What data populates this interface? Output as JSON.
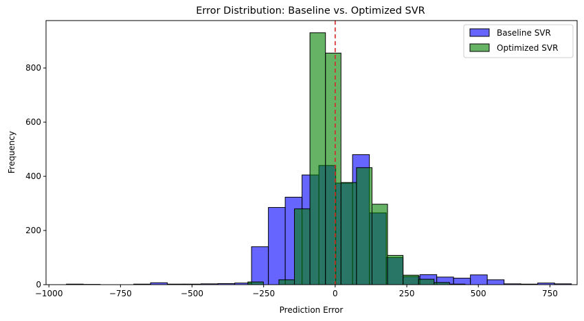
{
  "chart_data": {
    "type": "bar",
    "title": "Error Distribution: Baseline vs. Optimized SVR",
    "xlabel": "Prediction Error",
    "ylabel": "Frequency",
    "xlim": [
      -1010,
      845
    ],
    "ylim": [
      0,
      975
    ],
    "xticks": [
      -1000,
      -750,
      -500,
      -250,
      0,
      250,
      500,
      750
    ],
    "xtick_labels": [
      "−1000",
      "−750",
      "−500",
      "−250",
      "0",
      "250",
      "500",
      "750"
    ],
    "yticks": [
      0,
      200,
      400,
      600,
      800
    ],
    "ytick_labels": [
      "0",
      "200",
      "400",
      "600",
      "800"
    ],
    "grid": false,
    "legend_position": "top-right",
    "reference_line": {
      "x": 0,
      "color": "#d62728",
      "style": "dashed"
    },
    "series": [
      {
        "name": "Baseline SVR",
        "color": "#0000ff",
        "alpha": 0.6,
        "bins": [
          {
            "x0": -938.9,
            "x1": -880.1,
            "count": 2
          },
          {
            "x0": -880.1,
            "x1": -821.3,
            "count": 1
          },
          {
            "x0": -821.3,
            "x1": -762.5,
            "count": 0
          },
          {
            "x0": -762.5,
            "x1": -703.7,
            "count": 0
          },
          {
            "x0": -703.7,
            "x1": -644.9,
            "count": 2
          },
          {
            "x0": -644.9,
            "x1": -586.2,
            "count": 7
          },
          {
            "x0": -586.2,
            "x1": -527.4,
            "count": 2
          },
          {
            "x0": -527.4,
            "x1": -468.6,
            "count": 2
          },
          {
            "x0": -468.6,
            "x1": -409.8,
            "count": 3
          },
          {
            "x0": -409.8,
            "x1": -351.0,
            "count": 4
          },
          {
            "x0": -351.0,
            "x1": -292.2,
            "count": 6
          },
          {
            "x0": -292.2,
            "x1": -233.4,
            "count": 140
          },
          {
            "x0": -233.4,
            "x1": -174.6,
            "count": 285
          },
          {
            "x0": -174.6,
            "x1": -115.8,
            "count": 323
          },
          {
            "x0": -115.8,
            "x1": -57.0,
            "count": 405
          },
          {
            "x0": -57.0,
            "x1": 1.8,
            "count": 440
          },
          {
            "x0": 1.8,
            "x1": 60.6,
            "count": 375
          },
          {
            "x0": 60.6,
            "x1": 119.4,
            "count": 480
          },
          {
            "x0": 119.4,
            "x1": 178.2,
            "count": 265
          },
          {
            "x0": 178.2,
            "x1": 237.0,
            "count": 100
          },
          {
            "x0": 237.0,
            "x1": 295.8,
            "count": 30
          },
          {
            "x0": 295.8,
            "x1": 354.6,
            "count": 37
          },
          {
            "x0": 354.6,
            "x1": 413.4,
            "count": 28
          },
          {
            "x0": 413.4,
            "x1": 472.2,
            "count": 24
          },
          {
            "x0": 472.2,
            "x1": 531.0,
            "count": 36
          },
          {
            "x0": 531.0,
            "x1": 589.8,
            "count": 18
          },
          {
            "x0": 589.8,
            "x1": 648.6,
            "count": 3
          },
          {
            "x0": 648.6,
            "x1": 707.4,
            "count": 2
          },
          {
            "x0": 707.4,
            "x1": 766.2,
            "count": 6
          },
          {
            "x0": 766.2,
            "x1": 825.0,
            "count": 3
          }
        ]
      },
      {
        "name": "Optimized SVR",
        "color": "#008000",
        "alpha": 0.6,
        "bins": [
          {
            "x0": -305.0,
            "x1": -250.8,
            "count": 10
          },
          {
            "x0": -250.8,
            "x1": -196.6,
            "count": 0
          },
          {
            "x0": -196.6,
            "x1": -142.4,
            "count": 18
          },
          {
            "x0": -142.4,
            "x1": -88.2,
            "count": 280
          },
          {
            "x0": -88.2,
            "x1": -34.0,
            "count": 930
          },
          {
            "x0": -34.0,
            "x1": 20.2,
            "count": 855
          },
          {
            "x0": 20.2,
            "x1": 74.4,
            "count": 377
          },
          {
            "x0": 74.4,
            "x1": 128.6,
            "count": 432
          },
          {
            "x0": 128.6,
            "x1": 182.8,
            "count": 297
          },
          {
            "x0": 182.8,
            "x1": 237.0,
            "count": 108
          },
          {
            "x0": 237.0,
            "x1": 291.2,
            "count": 35
          },
          {
            "x0": 291.2,
            "x1": 345.4,
            "count": 20
          },
          {
            "x0": 345.4,
            "x1": 399.6,
            "count": 8
          },
          {
            "x0": 399.6,
            "x1": 453.8,
            "count": 2
          }
        ]
      }
    ]
  }
}
